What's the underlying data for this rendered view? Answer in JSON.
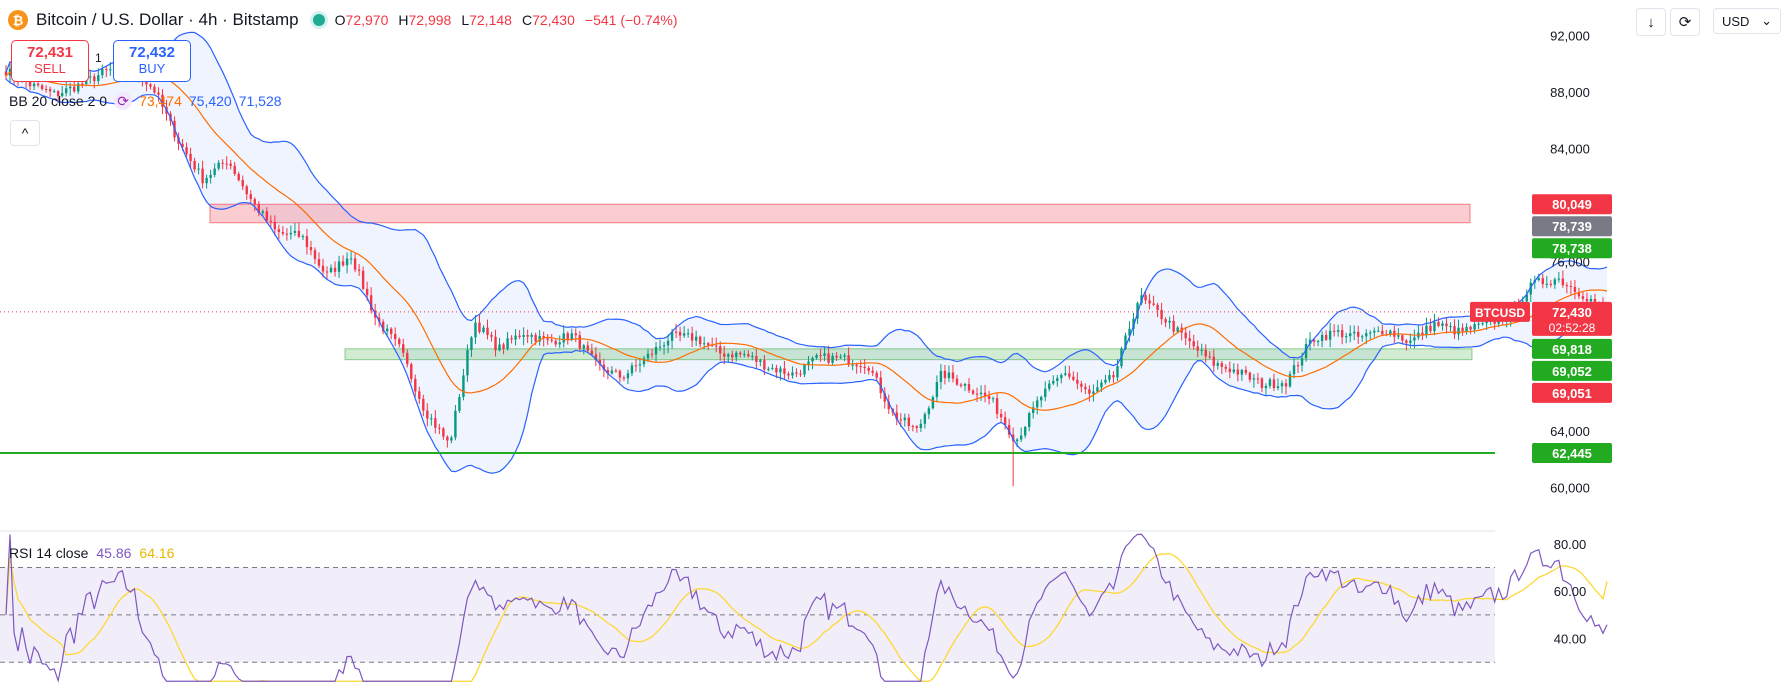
{
  "header": {
    "symbol": "Bitcoin / U.S. Dollar · 4h · Bitstamp",
    "coin_glyph": "₿",
    "ohlc": {
      "o_label": "O",
      "o": "72,970",
      "h_label": "H",
      "h": "72,998",
      "l_label": "L",
      "l": "72,148",
      "c_label": "C",
      "c": "72,430",
      "change": "−541 (−0.74%)"
    }
  },
  "trade": {
    "sell_price": "72,431",
    "sell_label": "SELL",
    "spread": "1",
    "buy_price": "72,432",
    "buy_label": "BUY"
  },
  "bollinger": {
    "label": "BB 20 close 2 0",
    "basis": "73,474",
    "upper": "75,420",
    "lower": "71,528"
  },
  "rsi": {
    "label": "RSI 14 close",
    "value": "45.86",
    "ma": "64.16",
    "levels": [
      70,
      50,
      30
    ],
    "ticks": [
      "80.00",
      "60.00",
      "40.00"
    ]
  },
  "toolbar": {
    "currency": "USD",
    "download_glyph": "↓",
    "sync_glyph": "⟳",
    "chevron_glyph": "⌄"
  },
  "colors": {
    "up": "#089981",
    "down": "#f23645",
    "bb_line": "#2962ff",
    "basis": "#ff6d00",
    "rsi_line": "#7e57c2",
    "rsi_ma": "#fdd835",
    "support": "#22ab21",
    "zone_red": "#f23645",
    "zone_green": "#4caf50"
  },
  "chart_data": [
    {
      "type": "candlestick",
      "title": "Bitcoin / U.S. Dollar · 4h · Bitstamp",
      "y_ticks": [
        92000,
        88000,
        84000,
        80000,
        76000,
        72000,
        68000,
        64000,
        60000
      ],
      "y_tick_labels": [
        "92,000",
        "88,000",
        "84,000",
        "80,000",
        "76,000",
        "72,000",
        "68,000",
        "64,000",
        "60,000"
      ],
      "ylim": [
        57000,
        94500
      ],
      "overlays": {
        "bollinger_bands": true,
        "period": 20,
        "multiplier": 2
      },
      "zones": [
        {
          "color": "red",
          "from": 78739,
          "to": 80049
        },
        {
          "color": "green",
          "from": 69052,
          "to": 69818
        }
      ],
      "horizontal_lines": [
        {
          "value": 62445,
          "color": "green"
        },
        {
          "value": 72430,
          "color": "red",
          "style": "dotted"
        }
      ],
      "price_labels": [
        {
          "value": 80049,
          "text": "80,049",
          "color": "red"
        },
        {
          "value": 78739,
          "text": "78,739",
          "color": "gray"
        },
        {
          "value": 78738,
          "text": "78,738",
          "color": "green"
        },
        {
          "value": 72430,
          "text": "72,430",
          "sub": "02:52:28",
          "color": "red",
          "tag": "BTCUSD"
        },
        {
          "value": 69818,
          "text": "69,818",
          "color": "green"
        },
        {
          "value": 69052,
          "text": "69,052",
          "color": "green"
        },
        {
          "value": 69051,
          "text": "69,051",
          "color": "red"
        },
        {
          "value": 62445,
          "text": "62,445",
          "color": "green"
        }
      ],
      "close_path_keypoints": [
        89500,
        88500,
        87800,
        88500,
        89400,
        89800,
        88200,
        84500,
        81800,
        83200,
        80200,
        78000,
        77800,
        75000,
        76500,
        72000,
        69800,
        65500,
        63000,
        71800,
        69800,
        71000,
        70300,
        70800,
        68600,
        67800,
        69200,
        70700,
        70600,
        69500,
        69400,
        68500,
        68000,
        69200,
        69100,
        68700,
        65200,
        64000,
        68100,
        67200,
        66200,
        63300,
        66400,
        68200,
        66500,
        67900,
        73500,
        72000,
        70300,
        68800,
        68200,
        67300,
        67500,
        70500,
        71000,
        70600,
        71200,
        70300,
        71600,
        71000,
        71500,
        72200,
        74400,
        74800,
        73700,
        72430
      ]
    },
    {
      "type": "line",
      "title": "RSI 14 close",
      "ylim": [
        20,
        85
      ],
      "y_ticks": [
        80,
        60,
        40
      ],
      "reference_levels": [
        70,
        50,
        30
      ],
      "last_value": 45.86,
      "ma_last_value": 64.16
    }
  ]
}
